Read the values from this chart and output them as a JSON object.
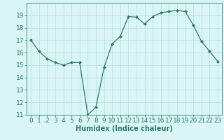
{
  "x": [
    0,
    1,
    2,
    3,
    4,
    5,
    6,
    7,
    8,
    9,
    10,
    11,
    12,
    13,
    14,
    15,
    16,
    17,
    18,
    19,
    20,
    21,
    22,
    23
  ],
  "y": [
    17.0,
    16.1,
    15.5,
    15.2,
    15.0,
    15.2,
    15.2,
    11.0,
    11.6,
    14.8,
    16.7,
    17.3,
    18.9,
    18.85,
    18.3,
    18.9,
    19.2,
    19.3,
    19.4,
    19.3,
    18.2,
    16.9,
    16.1,
    15.3
  ],
  "line_color": "#2d7a6e",
  "marker": "D",
  "marker_size": 2.0,
  "bg_color": "#d9f5f5",
  "grid_color": "#b8dede",
  "xlabel": "Humidex (Indice chaleur)",
  "ylim": [
    11,
    20
  ],
  "xlim": [
    -0.5,
    23.5
  ],
  "yticks": [
    11,
    12,
    13,
    14,
    15,
    16,
    17,
    18,
    19
  ],
  "xticks": [
    0,
    1,
    2,
    3,
    4,
    5,
    6,
    7,
    8,
    9,
    10,
    11,
    12,
    13,
    14,
    15,
    16,
    17,
    18,
    19,
    20,
    21,
    22,
    23
  ],
  "xlabel_fontsize": 7,
  "tick_fontsize": 6.5
}
